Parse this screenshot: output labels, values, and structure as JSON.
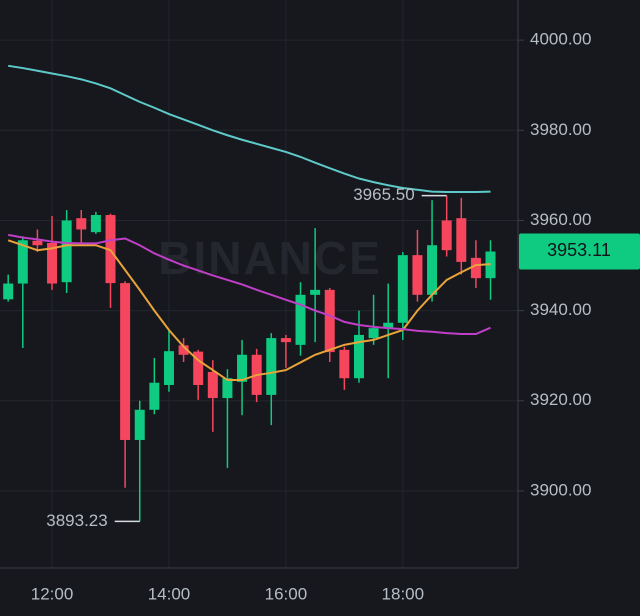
{
  "chart_data": {
    "type": "candlestick",
    "watermark": "BINANCE",
    "colors": {
      "up": "#0ecb81",
      "down": "#f6465d"
    },
    "grid": true,
    "xlim": [
      11.11,
      19.97
    ],
    "ylim": [
      3882.9,
      4008.9
    ],
    "xticks": [
      {
        "value": 12,
        "label": "12:00"
      },
      {
        "value": 14,
        "label": "14:00"
      },
      {
        "value": 16,
        "label": "16:00"
      },
      {
        "value": 18,
        "label": "18:00"
      }
    ],
    "yticks": [
      {
        "value": 3900,
        "label": "3900.00"
      },
      {
        "value": 3920,
        "label": "3920.00"
      },
      {
        "value": 3940,
        "label": "3940.00"
      },
      {
        "value": 3960,
        "label": "3960.00"
      },
      {
        "value": 3980,
        "label": "3980.00"
      },
      {
        "value": 4000,
        "label": "4000.00"
      }
    ],
    "x": [
      11.25,
      11.5,
      11.75,
      12,
      12.25,
      12.5,
      12.75,
      13,
      13.25,
      13.5,
      13.75,
      14,
      14.25,
      14.5,
      14.75,
      15,
      15.25,
      15.5,
      15.75,
      16,
      16.25,
      16.5,
      16.75,
      17,
      17.25,
      17.5,
      17.75,
      18,
      18.25,
      18.5,
      18.75,
      19,
      19.25,
      19.5
    ],
    "open": [
      3942.5,
      3946,
      3955.5,
      3955,
      3946.3,
      3960.5,
      3957.4,
      3961.2,
      3946.1,
      3911.3,
      3918,
      3923.5,
      3932.3,
      3930.9,
      3926.4,
      3920.6,
      3924.2,
      3930.2,
      3921.3,
      3933.9,
      3932.4,
      3943.5,
      3944.6,
      3931.3,
      3925,
      3933.9,
      3936.1,
      3937.3,
      3952.3,
      3943.5,
      3960,
      3960.5,
      3951.7,
      3947.2
    ],
    "high": [
      3948,
      3956.5,
      3958,
      3961,
      3962.3,
      3962.3,
      3961.9,
      3961.5,
      3946.5,
      3920,
      3929.5,
      3935.7,
      3933.9,
      3931.3,
      3929,
      3927,
      3933.5,
      3931.5,
      3935,
      3934.6,
      3946.3,
      3958.3,
      3945,
      3932,
      3940,
      3943.5,
      3946,
      3953,
      3957.9,
      3964.5,
      3965.5,
      3965,
      3955.6,
      3955.6
    ],
    "low": [
      3942,
      3931.7,
      3953,
      3944.6,
      3943.9,
      3954.5,
      3957,
      3940.6,
      3900.7,
      3893.23,
      3917,
      3922,
      3928.6,
      3920.2,
      3913.1,
      3905.1,
      3916.8,
      3919.7,
      3914.6,
      3927.3,
      3930,
      3933,
      3928.6,
      3922.4,
      3924,
      3932.4,
      3925,
      3933.5,
      3942,
      3942,
      3952,
      3948,
      3945,
      3942.4
    ],
    "close": [
      3946,
      3955.6,
      3954.5,
      3946,
      3960,
      3958,
      3961.2,
      3946.1,
      3911.3,
      3918,
      3924,
      3931,
      3930.2,
      3923.5,
      3920.6,
      3925,
      3930.2,
      3921.3,
      3933.9,
      3933,
      3943.5,
      3944.6,
      3930.8,
      3925,
      3934.6,
      3936.1,
      3937.3,
      3952.3,
      3943.5,
      3954.5,
      3953.4,
      3950.8,
      3947.2,
      3953.11
    ],
    "lines": [
      {
        "color": "#e8a33b",
        "values": [
          3955.6,
          3954.5,
          3953.4,
          3953.8,
          3954.5,
          3954.5,
          3954.5,
          3953.4,
          3949,
          3944.6,
          3940,
          3935.7,
          3932,
          3929,
          3926.8,
          3924.6,
          3924.6,
          3925.7,
          3926.2,
          3926.8,
          3928.5,
          3930.2,
          3931.3,
          3932.4,
          3933,
          3933.5,
          3934.6,
          3935.7,
          3940,
          3943.5,
          3946.8,
          3948.5,
          3950.1,
          3950.3
        ]
      },
      {
        "color": "#c03fc7",
        "values": [
          3956.8,
          3956.2,
          3955.8,
          3955.3,
          3955,
          3954.9,
          3954.9,
          3955.6,
          3956,
          3954.5,
          3952.7,
          3951.3,
          3950,
          3948.9,
          3947.8,
          3946.8,
          3945.8,
          3944.6,
          3943.5,
          3942.4,
          3941.3,
          3940,
          3938.9,
          3937.5,
          3936.8,
          3936.4,
          3936.1,
          3935.9,
          3935.5,
          3935.3,
          3935,
          3934.8,
          3934.8,
          3936.2
        ]
      },
      {
        "color": "#5ec9c9",
        "values": [
          3994.3,
          3993.8,
          3993.2,
          3992.6,
          3992,
          3991.3,
          3990.4,
          3989.3,
          3987.8,
          3986.3,
          3985,
          3983.6,
          3982.4,
          3981.2,
          3980,
          3978.9,
          3977.9,
          3977,
          3976.1,
          3975.2,
          3974.1,
          3972.8,
          3971.6,
          3970.4,
          3969.3,
          3968.5,
          3967.8,
          3967.2,
          3966.8,
          3966.4,
          3966.3,
          3966.3,
          3966.3,
          3966.4
        ]
      }
    ],
    "annotations": [
      {
        "x": 18.75,
        "y": 3965.5,
        "label": "3965.50"
      },
      {
        "x": 13.5,
        "y": 3893.23,
        "label": "3893.23"
      }
    ],
    "last_price": {
      "value": 3953.11,
      "label": "3953.11"
    }
  }
}
